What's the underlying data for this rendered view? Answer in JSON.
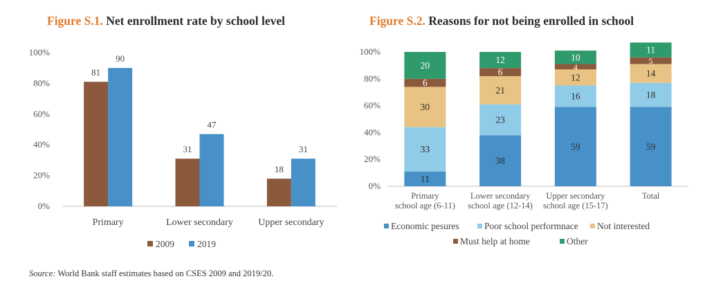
{
  "fig1": {
    "number": "Figure S.1.",
    "title": "Net enrollment rate by school level"
  },
  "fig2": {
    "number": "Figure S.2.",
    "title": "Reasons for not being enrolled in school"
  },
  "source": {
    "label": "Source:",
    "text": "World Bank staff estimates based on CSES 2009 and 2019/20."
  },
  "colors": {
    "y2009": "#8b5a3c",
    "y2019": "#4791c8",
    "economic": "#4791c8",
    "poor_perf": "#90cce8",
    "not_interested": "#e9c383",
    "help_home": "#8b5a3c",
    "other": "#2f9a6c"
  },
  "chart_data": [
    {
      "type": "bar",
      "categories": [
        "Primary",
        "Lower secondary",
        "Upper secondary"
      ],
      "series": [
        {
          "name": "2009",
          "values": [
            81,
            31,
            18
          ]
        },
        {
          "name": "2019",
          "values": [
            90,
            47,
            31
          ]
        }
      ],
      "ylim": [
        0,
        100
      ],
      "yticks": [
        "0%",
        "20%",
        "40%",
        "60%",
        "80%",
        "100%"
      ],
      "legend": "bottom",
      "grid": false
    },
    {
      "type": "bar",
      "stacked": true,
      "categories": [
        [
          "Primary",
          "school age (6-11)"
        ],
        [
          "Lower secondary",
          "school age (12-14)"
        ],
        [
          "Upper secondary",
          "school age (15-17)"
        ],
        [
          "Total"
        ]
      ],
      "series": [
        {
          "name": "Economic pesures",
          "values": [
            11,
            38,
            59,
            59
          ]
        },
        {
          "name": "Poor school performnace",
          "values": [
            33,
            23,
            16,
            18
          ]
        },
        {
          "name": "Not interested",
          "values": [
            30,
            21,
            12,
            14
          ]
        },
        {
          "name": "Must help at home",
          "values": [
            6,
            6,
            4,
            5
          ]
        },
        {
          "name": "Other",
          "values": [
            20,
            12,
            10,
            11
          ]
        }
      ],
      "ylim": [
        0,
        100
      ],
      "yticks": [
        "0%",
        "20%",
        "40%",
        "60%",
        "80%",
        "100%"
      ],
      "legend": "bottom",
      "grid": false
    }
  ]
}
